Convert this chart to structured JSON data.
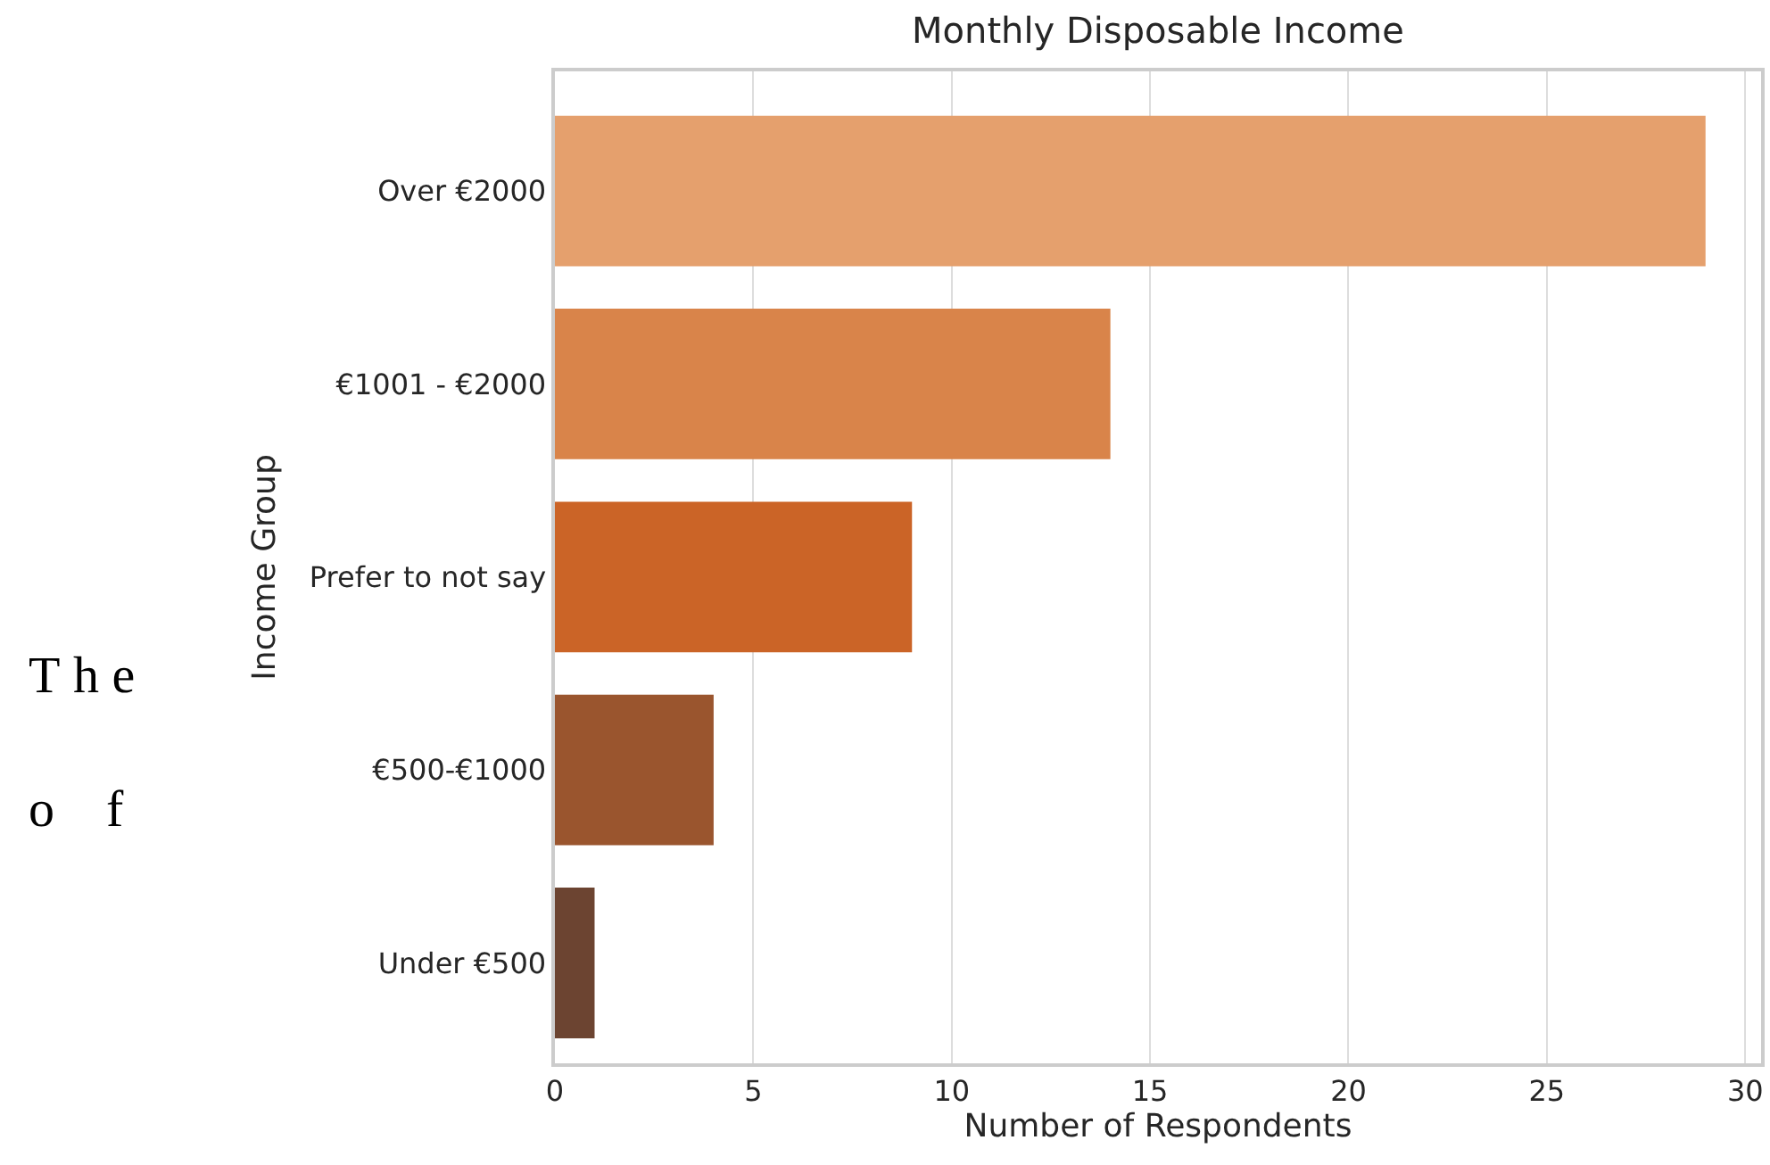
{
  "chart_data": {
    "type": "bar",
    "orientation": "horizontal",
    "title": "Monthly Disposable Income",
    "xlabel": "Number of Respondents",
    "ylabel": "Income Group",
    "categories": [
      "Over €2000",
      "€1001 - €2000",
      "Prefer to not say",
      "€500-€1000",
      "Under €500"
    ],
    "values": [
      29,
      14,
      9,
      4,
      1
    ],
    "colors": [
      "#e5a06d",
      "#d9844a",
      "#cb6427",
      "#9a552e",
      "#6c4431"
    ],
    "xlim": [
      0,
      30.4
    ],
    "xticks": [
      0,
      5,
      10,
      15,
      20,
      25,
      30
    ],
    "grid": "x",
    "annotations": [
      "T h e",
      "o    f"
    ]
  }
}
